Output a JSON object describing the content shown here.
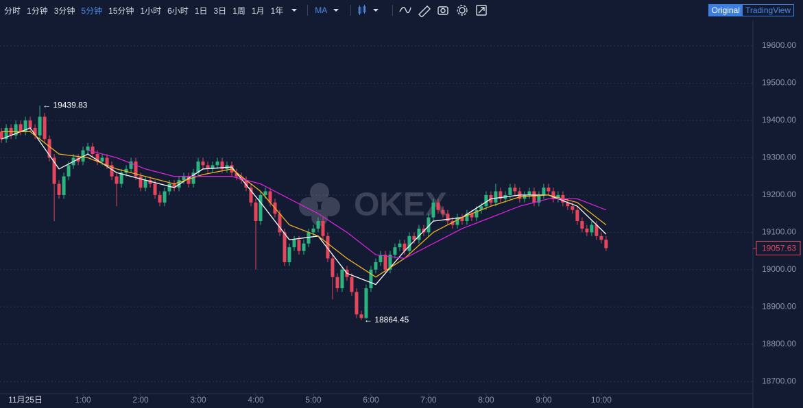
{
  "toolbar": {
    "intervals": [
      "分时",
      "1分钟",
      "3分钟",
      "5分钟",
      "15分钟",
      "1小时",
      "6小时",
      "1日",
      "3日",
      "1周",
      "1月",
      "1年"
    ],
    "selected": "5分钟",
    "indicator": "MA",
    "views": [
      "Original",
      "TradingView"
    ],
    "active_view": "Original"
  },
  "chart_data": {
    "type": "candlestick",
    "watermark": "OKEX",
    "up_color": "#2bb47f",
    "down_color": "#e4475b",
    "xlim": [
      -5.3,
      151.6
    ],
    "xticks": [
      {
        "value": 0,
        "label": "11月25日"
      },
      {
        "value": 12,
        "label": "1:00"
      },
      {
        "value": 24,
        "label": "2:00"
      },
      {
        "value": 36,
        "label": "3:00"
      },
      {
        "value": 48,
        "label": "4:00"
      },
      {
        "value": 60,
        "label": "5:00"
      },
      {
        "value": 72,
        "label": "6:00"
      },
      {
        "value": 84,
        "label": "7:00"
      },
      {
        "value": 96,
        "label": "8:00"
      },
      {
        "value": 108,
        "label": "9:00"
      },
      {
        "value": 120,
        "label": "10:00"
      }
    ],
    "ylim": [
      18667.4,
      19668
    ],
    "yticks": [
      {
        "value": 18700,
        "label": "18700.00"
      },
      {
        "value": 18800,
        "label": "18800.00"
      },
      {
        "value": 18900,
        "label": "18900.00"
      },
      {
        "value": 19000,
        "label": "19000.00"
      },
      {
        "value": 19100,
        "label": "19100.00"
      },
      {
        "value": 19200,
        "label": "19200.00"
      },
      {
        "value": 19300,
        "label": "19300.00"
      },
      {
        "value": 19400,
        "label": "19400.00"
      },
      {
        "value": 19500,
        "label": "19500.00"
      },
      {
        "value": 19600,
        "label": "19600.00"
      }
    ],
    "grid": true,
    "x": [
      -5,
      -4,
      -3,
      -2,
      -1,
      0,
      1,
      2,
      3,
      4,
      5,
      6,
      7,
      8,
      9,
      10,
      11,
      12,
      13,
      14,
      15,
      16,
      17,
      18,
      19,
      20,
      21,
      22,
      23,
      24,
      25,
      26,
      27,
      28,
      29,
      30,
      31,
      32,
      33,
      34,
      35,
      36,
      37,
      38,
      39,
      40,
      41,
      42,
      43,
      44,
      45,
      46,
      47,
      48,
      49,
      50,
      51,
      52,
      53,
      54,
      55,
      56,
      57,
      58,
      59,
      60,
      61,
      62,
      63,
      64,
      65,
      66,
      67,
      68,
      69,
      70,
      71,
      72,
      73,
      74,
      75,
      76,
      77,
      78,
      79,
      80,
      81,
      82,
      83,
      84,
      85,
      86,
      87,
      88,
      89,
      90,
      91,
      92,
      93,
      94,
      95,
      96,
      97,
      98,
      99,
      100,
      101,
      102,
      103,
      104,
      105,
      106,
      107,
      108,
      109,
      110,
      111,
      112,
      113,
      114,
      115,
      116,
      117,
      118,
      119,
      120,
      121
    ],
    "open": [
      19370,
      19350,
      19380,
      19360,
      19390,
      19370,
      19400,
      19380,
      19360,
      19410,
      19350,
      19300,
      19230,
      19200,
      19250,
      19280,
      19300,
      19290,
      19320,
      19330,
      19310,
      19290,
      19300,
      19280,
      19250,
      19230,
      19260,
      19270,
      19290,
      19250,
      19220,
      19240,
      19230,
      19200,
      19180,
      19210,
      19230,
      19220,
      19240,
      19250,
      19230,
      19260,
      19290,
      19280,
      19270,
      19280,
      19290,
      19270,
      19280,
      19260,
      19250,
      19240,
      19220,
      19180,
      19130,
      19200,
      19210,
      19180,
      19150,
      19100,
      19020,
      19060,
      19080,
      19050,
      19070,
      19100,
      19110,
      19130,
      19090,
      19030,
      18980,
      18950,
      19000,
      18980,
      18940,
      18880,
      18870,
      18950,
      19000,
      19020,
      19040,
      19000,
      19040,
      19060,
      19070,
      19050,
      19090,
      19080,
      19110,
      19100,
      19140,
      19180,
      19160,
      19150,
      19130,
      19120,
      19140,
      19130,
      19150,
      19140,
      19160,
      19170,
      19200,
      19180,
      19210,
      19190,
      19200,
      19220,
      19210,
      19190,
      19200,
      19210,
      19180,
      19200,
      19220,
      19210,
      19190,
      19200,
      19180,
      19170,
      19160,
      19130,
      19110,
      19100,
      19120,
      19090,
      19080
    ],
    "high": [
      19380,
      19390,
      19390,
      19400,
      19400,
      19410,
      19410,
      19390,
      19439.83,
      19420,
      19360,
      19310,
      19240,
      19260,
      19290,
      19310,
      19310,
      19330,
      19340,
      19340,
      19320,
      19310,
      19310,
      19290,
      19260,
      19270,
      19280,
      19300,
      19300,
      19260,
      19250,
      19250,
      19240,
      19210,
      19220,
      19240,
      19240,
      19250,
      19260,
      19260,
      19270,
      19300,
      19300,
      19290,
      19290,
      19300,
      19300,
      19290,
      19290,
      19270,
      19260,
      19250,
      19230,
      19190,
      19210,
      19220,
      19220,
      19190,
      19160,
      19110,
      19070,
      19090,
      19090,
      19080,
      19110,
      19120,
      19140,
      19140,
      19100,
      19040,
      18990,
      19010,
      19010,
      18990,
      18950,
      18890,
      18960,
      19010,
      19030,
      19050,
      19050,
      19050,
      19070,
      19080,
      19080,
      19100,
      19100,
      19120,
      19120,
      19150,
      19190,
      19190,
      19170,
      19160,
      19140,
      19150,
      19150,
      19160,
      19160,
      19170,
      19180,
      19210,
      19210,
      19230,
      19220,
      19210,
      19230,
      19230,
      19220,
      19210,
      19220,
      19220,
      19210,
      19230,
      19230,
      19220,
      19210,
      19210,
      19190,
      19180,
      19170,
      19140,
      19120,
      19130,
      19130,
      19100,
      19090
    ],
    "low": [
      19340,
      19340,
      19350,
      19350,
      19360,
      19360,
      19370,
      19350,
      19350,
      19340,
      19290,
      19130,
      19190,
      19190,
      19240,
      19270,
      19280,
      19280,
      19310,
      19300,
      19280,
      19280,
      19270,
      19240,
      19170,
      19220,
      19250,
      19260,
      19240,
      19210,
      19210,
      19220,
      19190,
      19170,
      19170,
      19200,
      19210,
      19210,
      19230,
      19220,
      19220,
      19250,
      19270,
      19260,
      19260,
      19270,
      19260,
      19260,
      19250,
      19240,
      19230,
      19210,
      19170,
      19000,
      19120,
      19190,
      19170,
      19140,
      19090,
      19010,
      19010,
      19050,
      19040,
      19040,
      19060,
      19090,
      19100,
      19080,
      19020,
      18920,
      18940,
      18940,
      18970,
      18930,
      18870,
      18864.45,
      18868,
      18940,
      18990,
      19010,
      18990,
      18990,
      19030,
      19050,
      19040,
      19040,
      19070,
      19070,
      19090,
      19090,
      19130,
      19150,
      19140,
      19120,
      19110,
      19110,
      19120,
      19120,
      19130,
      19130,
      19150,
      19160,
      19170,
      19170,
      19180,
      19180,
      19190,
      19200,
      19180,
      19180,
      19190,
      19170,
      19170,
      19190,
      19200,
      19180,
      19180,
      19170,
      19160,
      19150,
      19120,
      19100,
      19090,
      19090,
      19080,
      19070,
      19050
    ],
    "close": [
      19350,
      19380,
      19360,
      19390,
      19370,
      19400,
      19380,
      19360,
      19410,
      19350,
      19300,
      19230,
      19200,
      19250,
      19280,
      19300,
      19290,
      19320,
      19330,
      19310,
      19290,
      19300,
      19280,
      19250,
      19230,
      19260,
      19270,
      19290,
      19250,
      19220,
      19240,
      19230,
      19200,
      19180,
      19210,
      19230,
      19220,
      19240,
      19250,
      19230,
      19260,
      19290,
      19280,
      19270,
      19280,
      19290,
      19270,
      19280,
      19260,
      19250,
      19240,
      19220,
      19180,
      19130,
      19200,
      19210,
      19180,
      19150,
      19100,
      19020,
      19060,
      19080,
      19050,
      19070,
      19100,
      19110,
      19130,
      19090,
      19030,
      18980,
      18950,
      19000,
      18980,
      18940,
      18880,
      18870,
      18950,
      19000,
      19020,
      19040,
      19000,
      19040,
      19060,
      19070,
      19050,
      19090,
      19080,
      19110,
      19100,
      19140,
      19180,
      19160,
      19150,
      19130,
      19120,
      19140,
      19130,
      19150,
      19140,
      19160,
      19170,
      19200,
      19180,
      19210,
      19190,
      19200,
      19220,
      19210,
      19190,
      19200,
      19210,
      19180,
      19200,
      19220,
      19210,
      19190,
      19200,
      19180,
      19170,
      19160,
      19130,
      19110,
      19100,
      19120,
      19090,
      19080,
      19057.63
    ],
    "ma_lines": [
      {
        "color": "#ffffff",
        "x": [
          -5,
          1,
          7,
          13,
          19,
          25,
          31,
          37,
          43,
          49,
          55,
          61,
          67,
          73,
          79,
          85,
          91,
          97,
          103,
          109,
          115,
          121
        ],
        "values": [
          19350,
          19380,
          19270,
          19310,
          19260,
          19240,
          19220,
          19270,
          19275,
          19180,
          19080,
          19090,
          18990,
          18960,
          19050,
          19130,
          19140,
          19190,
          19200,
          19200,
          19170,
          19095
        ]
      },
      {
        "color": "#f0b323",
        "x": [
          -5,
          1,
          7,
          13,
          19,
          25,
          31,
          37,
          43,
          49,
          55,
          61,
          67,
          73,
          79,
          85,
          91,
          97,
          103,
          109,
          115,
          121
        ],
        "values": [
          19370,
          19370,
          19310,
          19300,
          19270,
          19250,
          19230,
          19255,
          19270,
          19210,
          19120,
          19090,
          19030,
          18980,
          19030,
          19100,
          19140,
          19170,
          19195,
          19200,
          19180,
          19120
        ]
      },
      {
        "color": "#d624d6",
        "x": [
          -5,
          1,
          7,
          13,
          19,
          25,
          31,
          37,
          43,
          49,
          55,
          61,
          67,
          73,
          79,
          85,
          91,
          97,
          103,
          109,
          115,
          121
        ],
        "values": [
          null,
          null,
          null,
          19320,
          19300,
          19270,
          19250,
          19250,
          19250,
          19230,
          19190,
          19150,
          19100,
          19040,
          19030,
          19070,
          19110,
          19140,
          19170,
          19190,
          19190,
          19160
        ]
      }
    ],
    "high_label": {
      "x": 3,
      "value": 19439.83,
      "label": "← 19439.83"
    },
    "low_label": {
      "x": 70,
      "value": 18864.45,
      "label": "← 18864.45"
    },
    "last_price": {
      "value": 19057.63,
      "label": "19057.63"
    }
  }
}
